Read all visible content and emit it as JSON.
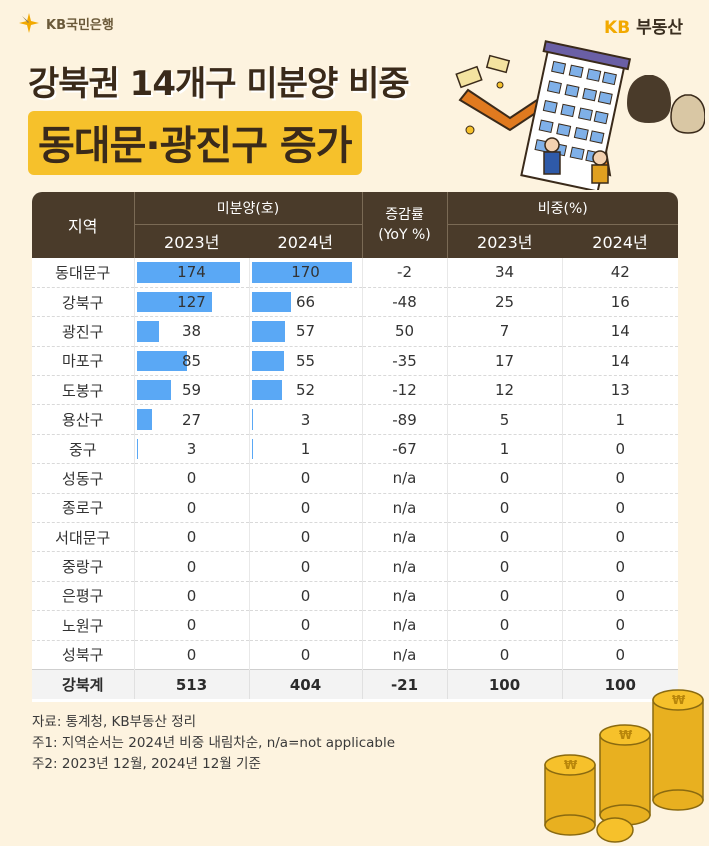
{
  "header": {
    "logo_text": "KB국민은행",
    "brand_kb": "KB",
    "brand_rest": "부동산"
  },
  "title": {
    "line1": "강북권 14개구 미분양 비중",
    "line2": "동대문·광진구 증가"
  },
  "table": {
    "col_region": "지역",
    "group_unsold": "미분양(호)",
    "group_change_l1": "증감률",
    "group_change_l2": "(YoY %)",
    "group_share": "비중(%)",
    "year_2023": "2023년",
    "year_2024": "2024년",
    "rows": [
      {
        "region": "동대문구",
        "u2023": 174,
        "u2024": 170,
        "yoy": "-2",
        "s2023": "34",
        "s2024": "42"
      },
      {
        "region": "강북구",
        "u2023": 127,
        "u2024": 66,
        "yoy": "-48",
        "s2023": "25",
        "s2024": "16"
      },
      {
        "region": "광진구",
        "u2023": 38,
        "u2024": 57,
        "yoy": "50",
        "s2023": "7",
        "s2024": "14"
      },
      {
        "region": "마포구",
        "u2023": 85,
        "u2024": 55,
        "yoy": "-35",
        "s2023": "17",
        "s2024": "14"
      },
      {
        "region": "도봉구",
        "u2023": 59,
        "u2024": 52,
        "yoy": "-12",
        "s2023": "12",
        "s2024": "13"
      },
      {
        "region": "용산구",
        "u2023": 27,
        "u2024": 3,
        "yoy": "-89",
        "s2023": "5",
        "s2024": "1"
      },
      {
        "region": "중구",
        "u2023": 3,
        "u2024": 1,
        "yoy": "-67",
        "s2023": "1",
        "s2024": "0"
      },
      {
        "region": "성동구",
        "u2023": 0,
        "u2024": 0,
        "yoy": "n/a",
        "s2023": "0",
        "s2024": "0"
      },
      {
        "region": "종로구",
        "u2023": 0,
        "u2024": 0,
        "yoy": "n/a",
        "s2023": "0",
        "s2024": "0"
      },
      {
        "region": "서대문구",
        "u2023": 0,
        "u2024": 0,
        "yoy": "n/a",
        "s2023": "0",
        "s2024": "0"
      },
      {
        "region": "중랑구",
        "u2023": 0,
        "u2024": 0,
        "yoy": "n/a",
        "s2023": "0",
        "s2024": "0"
      },
      {
        "region": "은평구",
        "u2023": 0,
        "u2024": 0,
        "yoy": "n/a",
        "s2023": "0",
        "s2024": "0"
      },
      {
        "region": "노원구",
        "u2023": 0,
        "u2024": 0,
        "yoy": "n/a",
        "s2023": "0",
        "s2024": "0"
      },
      {
        "region": "성북구",
        "u2023": 0,
        "u2024": 0,
        "yoy": "n/a",
        "s2023": "0",
        "s2024": "0"
      }
    ],
    "total": {
      "region": "강북계",
      "u2023": "513",
      "u2024": "404",
      "yoy": "-21",
      "s2023": "100",
      "s2024": "100"
    },
    "bar_max": 174
  },
  "notes": {
    "source": "자료: 통계청, KB부동산 정리",
    "note1": "주1: 지역순서는 2024년 비중 내림차순, n/a=not applicable",
    "note2": "주2: 2023년 12월, 2024년 12월 기준"
  },
  "colors": {
    "background": "#fdf3df",
    "header_brown": "#4a3b2a",
    "accent_yellow": "#f6c12b",
    "bar_blue": "#5aa8f5",
    "brand_gold": "#f2a900"
  }
}
